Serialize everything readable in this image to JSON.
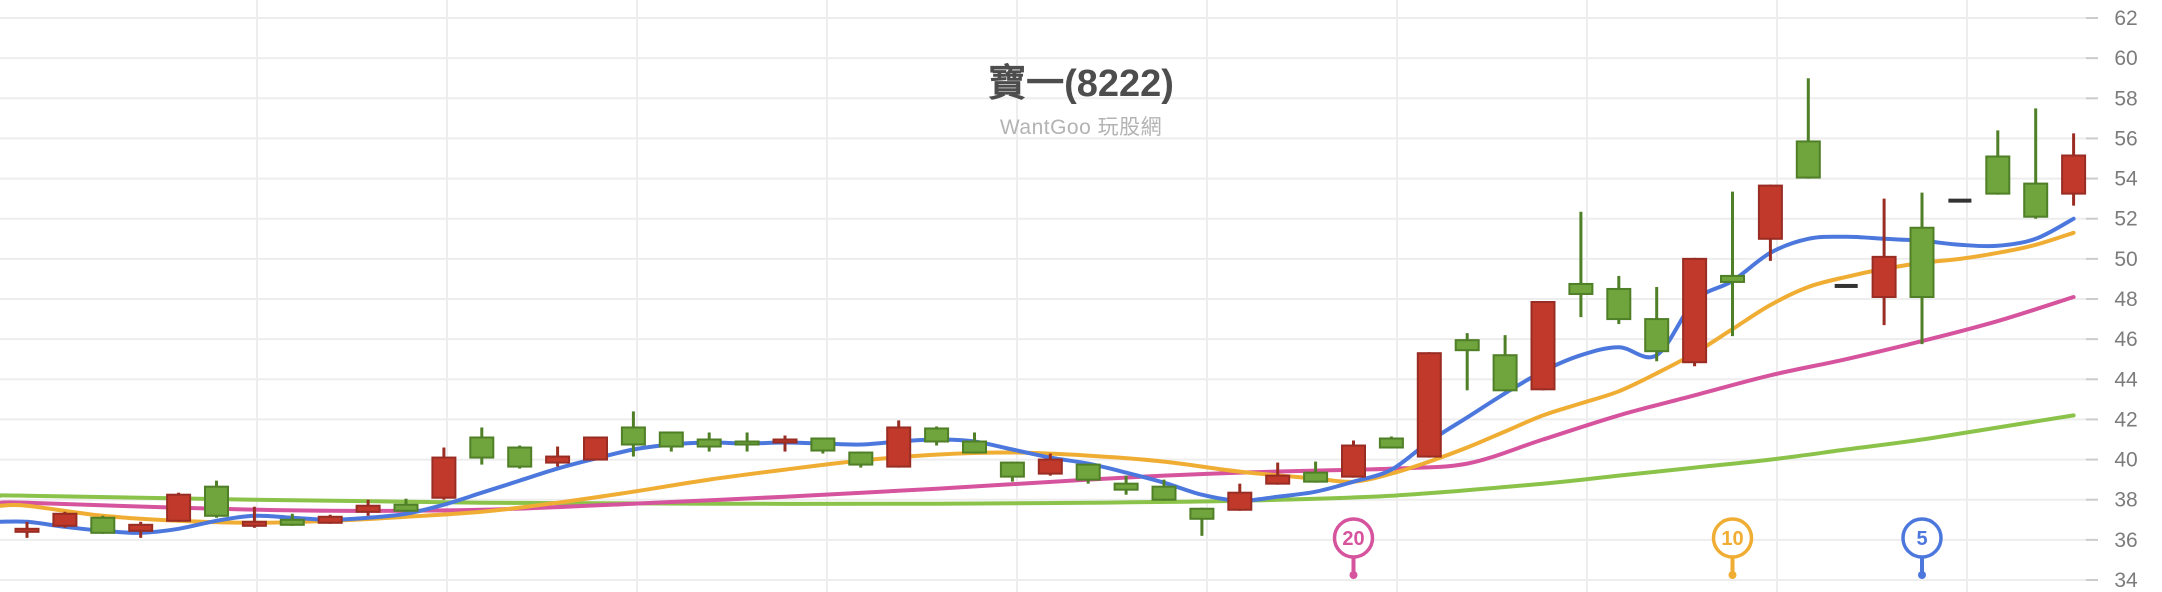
{
  "header": {
    "title": "寶一(8222)",
    "subtitle": "WantGoo 玩股網"
  },
  "colors": {
    "background": "#ffffff",
    "grid": "#ededed",
    "axis_tick": "#cccccc",
    "axis_label": "#7c7c7c",
    "title": "#4d4d4d",
    "subtitle": "#b3b3b3",
    "candle_up_fill": "#c0392b",
    "candle_up_border": "#992d23",
    "candle_down_fill": "#70a43d",
    "candle_down_border": "#4f7f27",
    "candle_flat": "#333333",
    "ma5": "#4c78dd",
    "ma10": "#f0ad33",
    "ma20": "#d6539e",
    "ma60": "#8bc34a",
    "pin_fill": "#ffffff"
  },
  "chart_data": {
    "type": "candlestick",
    "title": "寶一(8222)",
    "source_watermark": "WantGoo 玩股網",
    "grid": true,
    "legend_position": "bottom-pins",
    "y_axis": {
      "min": 34,
      "max": 62,
      "tick_step": 2,
      "ticks": [
        62,
        60,
        58,
        56,
        54,
        52,
        50,
        48,
        46,
        44,
        42,
        40,
        38,
        36,
        34
      ]
    },
    "candle_fields": [
      "open",
      "high",
      "low",
      "close",
      "direction"
    ],
    "candles": [
      [
        36.45,
        36.9,
        36.1,
        36.55,
        "up"
      ],
      [
        36.7,
        37.4,
        36.6,
        37.3,
        "up"
      ],
      [
        37.1,
        37.2,
        36.3,
        36.35,
        "down"
      ],
      [
        36.45,
        36.9,
        36.1,
        36.75,
        "up"
      ],
      [
        36.95,
        38.35,
        36.9,
        38.25,
        "up"
      ],
      [
        38.65,
        38.95,
        37.1,
        37.2,
        "down"
      ],
      [
        36.7,
        37.65,
        36.6,
        36.9,
        "up"
      ],
      [
        37.0,
        37.3,
        36.7,
        36.75,
        "down"
      ],
      [
        36.85,
        37.25,
        36.8,
        37.15,
        "up"
      ],
      [
        37.4,
        38.0,
        37.2,
        37.7,
        "up"
      ],
      [
        37.75,
        38.05,
        37.4,
        37.45,
        "down"
      ],
      [
        38.1,
        40.6,
        38.0,
        40.1,
        "up"
      ],
      [
        41.1,
        41.6,
        39.75,
        40.1,
        "down"
      ],
      [
        40.6,
        40.7,
        39.55,
        39.65,
        "down"
      ],
      [
        39.85,
        40.65,
        39.65,
        40.15,
        "up"
      ],
      [
        40.0,
        41.15,
        39.95,
        41.1,
        "up"
      ],
      [
        41.6,
        42.4,
        40.15,
        40.75,
        "down"
      ],
      [
        41.35,
        41.4,
        40.4,
        40.65,
        "down"
      ],
      [
        41.0,
        41.35,
        40.4,
        40.65,
        "down"
      ],
      [
        40.9,
        41.35,
        40.4,
        40.75,
        "down"
      ],
      [
        40.9,
        41.2,
        40.4,
        41.0,
        "up"
      ],
      [
        41.05,
        41.1,
        40.3,
        40.45,
        "down"
      ],
      [
        40.35,
        40.4,
        39.6,
        39.75,
        "down"
      ],
      [
        39.65,
        41.95,
        39.6,
        41.6,
        "up"
      ],
      [
        41.55,
        41.65,
        40.7,
        40.9,
        "down"
      ],
      [
        40.9,
        41.35,
        40.3,
        40.35,
        "down"
      ],
      [
        39.85,
        39.9,
        38.9,
        39.15,
        "down"
      ],
      [
        39.3,
        40.3,
        39.2,
        40.0,
        "up"
      ],
      [
        39.75,
        39.8,
        38.8,
        39.0,
        "down"
      ],
      [
        38.8,
        39.2,
        38.25,
        38.5,
        "down"
      ],
      [
        38.65,
        39.0,
        37.95,
        38.0,
        "down"
      ],
      [
        37.55,
        37.6,
        36.2,
        37.05,
        "down"
      ],
      [
        37.5,
        38.8,
        37.45,
        38.35,
        "up"
      ],
      [
        38.8,
        39.85,
        38.75,
        39.2,
        "up"
      ],
      [
        39.35,
        39.9,
        38.85,
        38.9,
        "down"
      ],
      [
        39.15,
        40.95,
        39.1,
        40.7,
        "up"
      ],
      [
        41.05,
        41.15,
        40.55,
        40.6,
        "down"
      ],
      [
        40.15,
        45.35,
        40.1,
        45.3,
        "up"
      ],
      [
        45.95,
        46.3,
        43.45,
        45.45,
        "down"
      ],
      [
        45.2,
        46.2,
        43.4,
        43.45,
        "down"
      ],
      [
        43.5,
        47.9,
        43.45,
        47.85,
        "up"
      ],
      [
        48.75,
        52.35,
        47.1,
        48.25,
        "down"
      ],
      [
        48.5,
        49.15,
        46.75,
        47.0,
        "down"
      ],
      [
        47.0,
        48.6,
        44.9,
        45.4,
        "down"
      ],
      [
        44.85,
        50.05,
        44.65,
        50.0,
        "up"
      ],
      [
        49.15,
        53.35,
        46.15,
        48.85,
        "down"
      ],
      [
        51.0,
        53.7,
        49.9,
        53.65,
        "up"
      ],
      [
        55.85,
        59.0,
        54.0,
        54.05,
        "down"
      ],
      [
        48.65,
        48.65,
        48.65,
        48.65,
        "flat"
      ],
      [
        48.1,
        53.0,
        46.7,
        50.1,
        "up"
      ],
      [
        51.55,
        53.3,
        45.75,
        48.1,
        "down"
      ],
      [
        52.9,
        52.9,
        52.9,
        52.9,
        "flat"
      ],
      [
        55.1,
        56.4,
        53.2,
        53.25,
        "down"
      ],
      [
        53.75,
        57.5,
        52.0,
        52.1,
        "down"
      ],
      [
        53.25,
        56.25,
        52.65,
        55.15,
        "up"
      ]
    ],
    "moving_averages": [
      {
        "name": "MA60",
        "color": "#8bc34a",
        "points": [
          [
            1,
            38.2
          ],
          [
            7,
            38.0
          ],
          [
            13,
            37.85
          ],
          [
            19,
            37.8
          ],
          [
            25,
            37.8
          ],
          [
            29,
            37.85
          ],
          [
            33,
            37.95
          ],
          [
            37,
            38.2
          ],
          [
            41,
            38.8
          ],
          [
            43,
            39.2
          ],
          [
            45,
            39.6
          ],
          [
            47,
            40.0
          ],
          [
            49,
            40.5
          ],
          [
            51,
            41.0
          ],
          [
            53,
            41.6
          ],
          [
            55,
            42.2
          ]
        ]
      },
      {
        "name": "MA20",
        "label": "20",
        "color": "#d6539e",
        "points": [
          [
            1,
            37.85
          ],
          [
            5,
            37.6
          ],
          [
            9,
            37.45
          ],
          [
            13,
            37.5
          ],
          [
            17,
            37.8
          ],
          [
            21,
            38.15
          ],
          [
            25,
            38.55
          ],
          [
            29,
            39.0
          ],
          [
            31,
            39.2
          ],
          [
            33,
            39.35
          ],
          [
            35,
            39.45
          ],
          [
            37,
            39.55
          ],
          [
            39,
            39.8
          ],
          [
            41,
            41.0
          ],
          [
            43,
            42.2
          ],
          [
            45,
            43.2
          ],
          [
            47,
            44.2
          ],
          [
            49,
            45.0
          ],
          [
            51,
            45.9
          ],
          [
            53,
            46.9
          ],
          [
            55,
            48.1
          ]
        ]
      },
      {
        "name": "MA10",
        "label": "10",
        "color": "#f0ad33",
        "points": [
          [
            1,
            37.7
          ],
          [
            3,
            37.2
          ],
          [
            5,
            36.95
          ],
          [
            7,
            36.85
          ],
          [
            9,
            36.95
          ],
          [
            11,
            37.15
          ],
          [
            13,
            37.4
          ],
          [
            15,
            37.85
          ],
          [
            17,
            38.4
          ],
          [
            19,
            39.0
          ],
          [
            21,
            39.5
          ],
          [
            23,
            39.95
          ],
          [
            25,
            40.25
          ],
          [
            27,
            40.35
          ],
          [
            29,
            40.2
          ],
          [
            31,
            39.9
          ],
          [
            33,
            39.4
          ],
          [
            35,
            39.05
          ],
          [
            36,
            38.9
          ],
          [
            37,
            39.3
          ],
          [
            38,
            39.9
          ],
          [
            39,
            40.6
          ],
          [
            40,
            41.4
          ],
          [
            41,
            42.2
          ],
          [
            42,
            42.8
          ],
          [
            43,
            43.4
          ],
          [
            44,
            44.3
          ],
          [
            45,
            45.3
          ],
          [
            46,
            46.5
          ],
          [
            47,
            47.7
          ],
          [
            48,
            48.6
          ],
          [
            49,
            49.1
          ],
          [
            50,
            49.5
          ],
          [
            51,
            49.8
          ],
          [
            52,
            50.0
          ],
          [
            53,
            50.3
          ],
          [
            54,
            50.7
          ],
          [
            55,
            51.3
          ]
        ]
      },
      {
        "name": "MA5",
        "label": "5",
        "color": "#4c78dd",
        "points": [
          [
            1,
            36.9
          ],
          [
            2,
            36.65
          ],
          [
            3,
            36.45
          ],
          [
            4,
            36.35
          ],
          [
            5,
            36.55
          ],
          [
            6,
            36.95
          ],
          [
            7,
            37.2
          ],
          [
            8,
            37.1
          ],
          [
            9,
            37.0
          ],
          [
            10,
            37.1
          ],
          [
            11,
            37.3
          ],
          [
            12,
            37.75
          ],
          [
            13,
            38.35
          ],
          [
            14,
            38.95
          ],
          [
            15,
            39.55
          ],
          [
            16,
            40.05
          ],
          [
            17,
            40.5
          ],
          [
            18,
            40.75
          ],
          [
            19,
            40.85
          ],
          [
            20,
            40.8
          ],
          [
            21,
            40.85
          ],
          [
            22,
            40.8
          ],
          [
            23,
            40.75
          ],
          [
            24,
            40.9
          ],
          [
            25,
            41.0
          ],
          [
            26,
            40.9
          ],
          [
            27,
            40.5
          ],
          [
            28,
            40.1
          ],
          [
            29,
            39.8
          ],
          [
            30,
            39.35
          ],
          [
            31,
            38.85
          ],
          [
            32,
            38.25
          ],
          [
            33,
            37.95
          ],
          [
            34,
            38.15
          ],
          [
            35,
            38.4
          ],
          [
            36,
            38.9
          ],
          [
            37,
            39.5
          ],
          [
            38,
            40.9
          ],
          [
            39,
            42.1
          ],
          [
            40,
            43.3
          ],
          [
            41,
            44.4
          ],
          [
            42,
            45.2
          ],
          [
            43,
            45.6
          ],
          [
            44,
            45.2
          ],
          [
            45,
            47.9
          ],
          [
            46,
            48.9
          ],
          [
            47,
            50.3
          ],
          [
            48,
            51.0
          ],
          [
            49,
            51.1
          ],
          [
            50,
            51.0
          ],
          [
            51,
            50.9
          ],
          [
            52,
            50.7
          ],
          [
            53,
            50.65
          ],
          [
            54,
            51.0
          ],
          [
            55,
            52.0
          ]
        ]
      }
    ],
    "pins": [
      {
        "label": "20",
        "color": "#d6539e",
        "candle_index": 36
      },
      {
        "label": "10",
        "color": "#f0ad33",
        "candle_index": 46
      },
      {
        "label": "5",
        "color": "#4c78dd",
        "candle_index": 51
      }
    ]
  }
}
